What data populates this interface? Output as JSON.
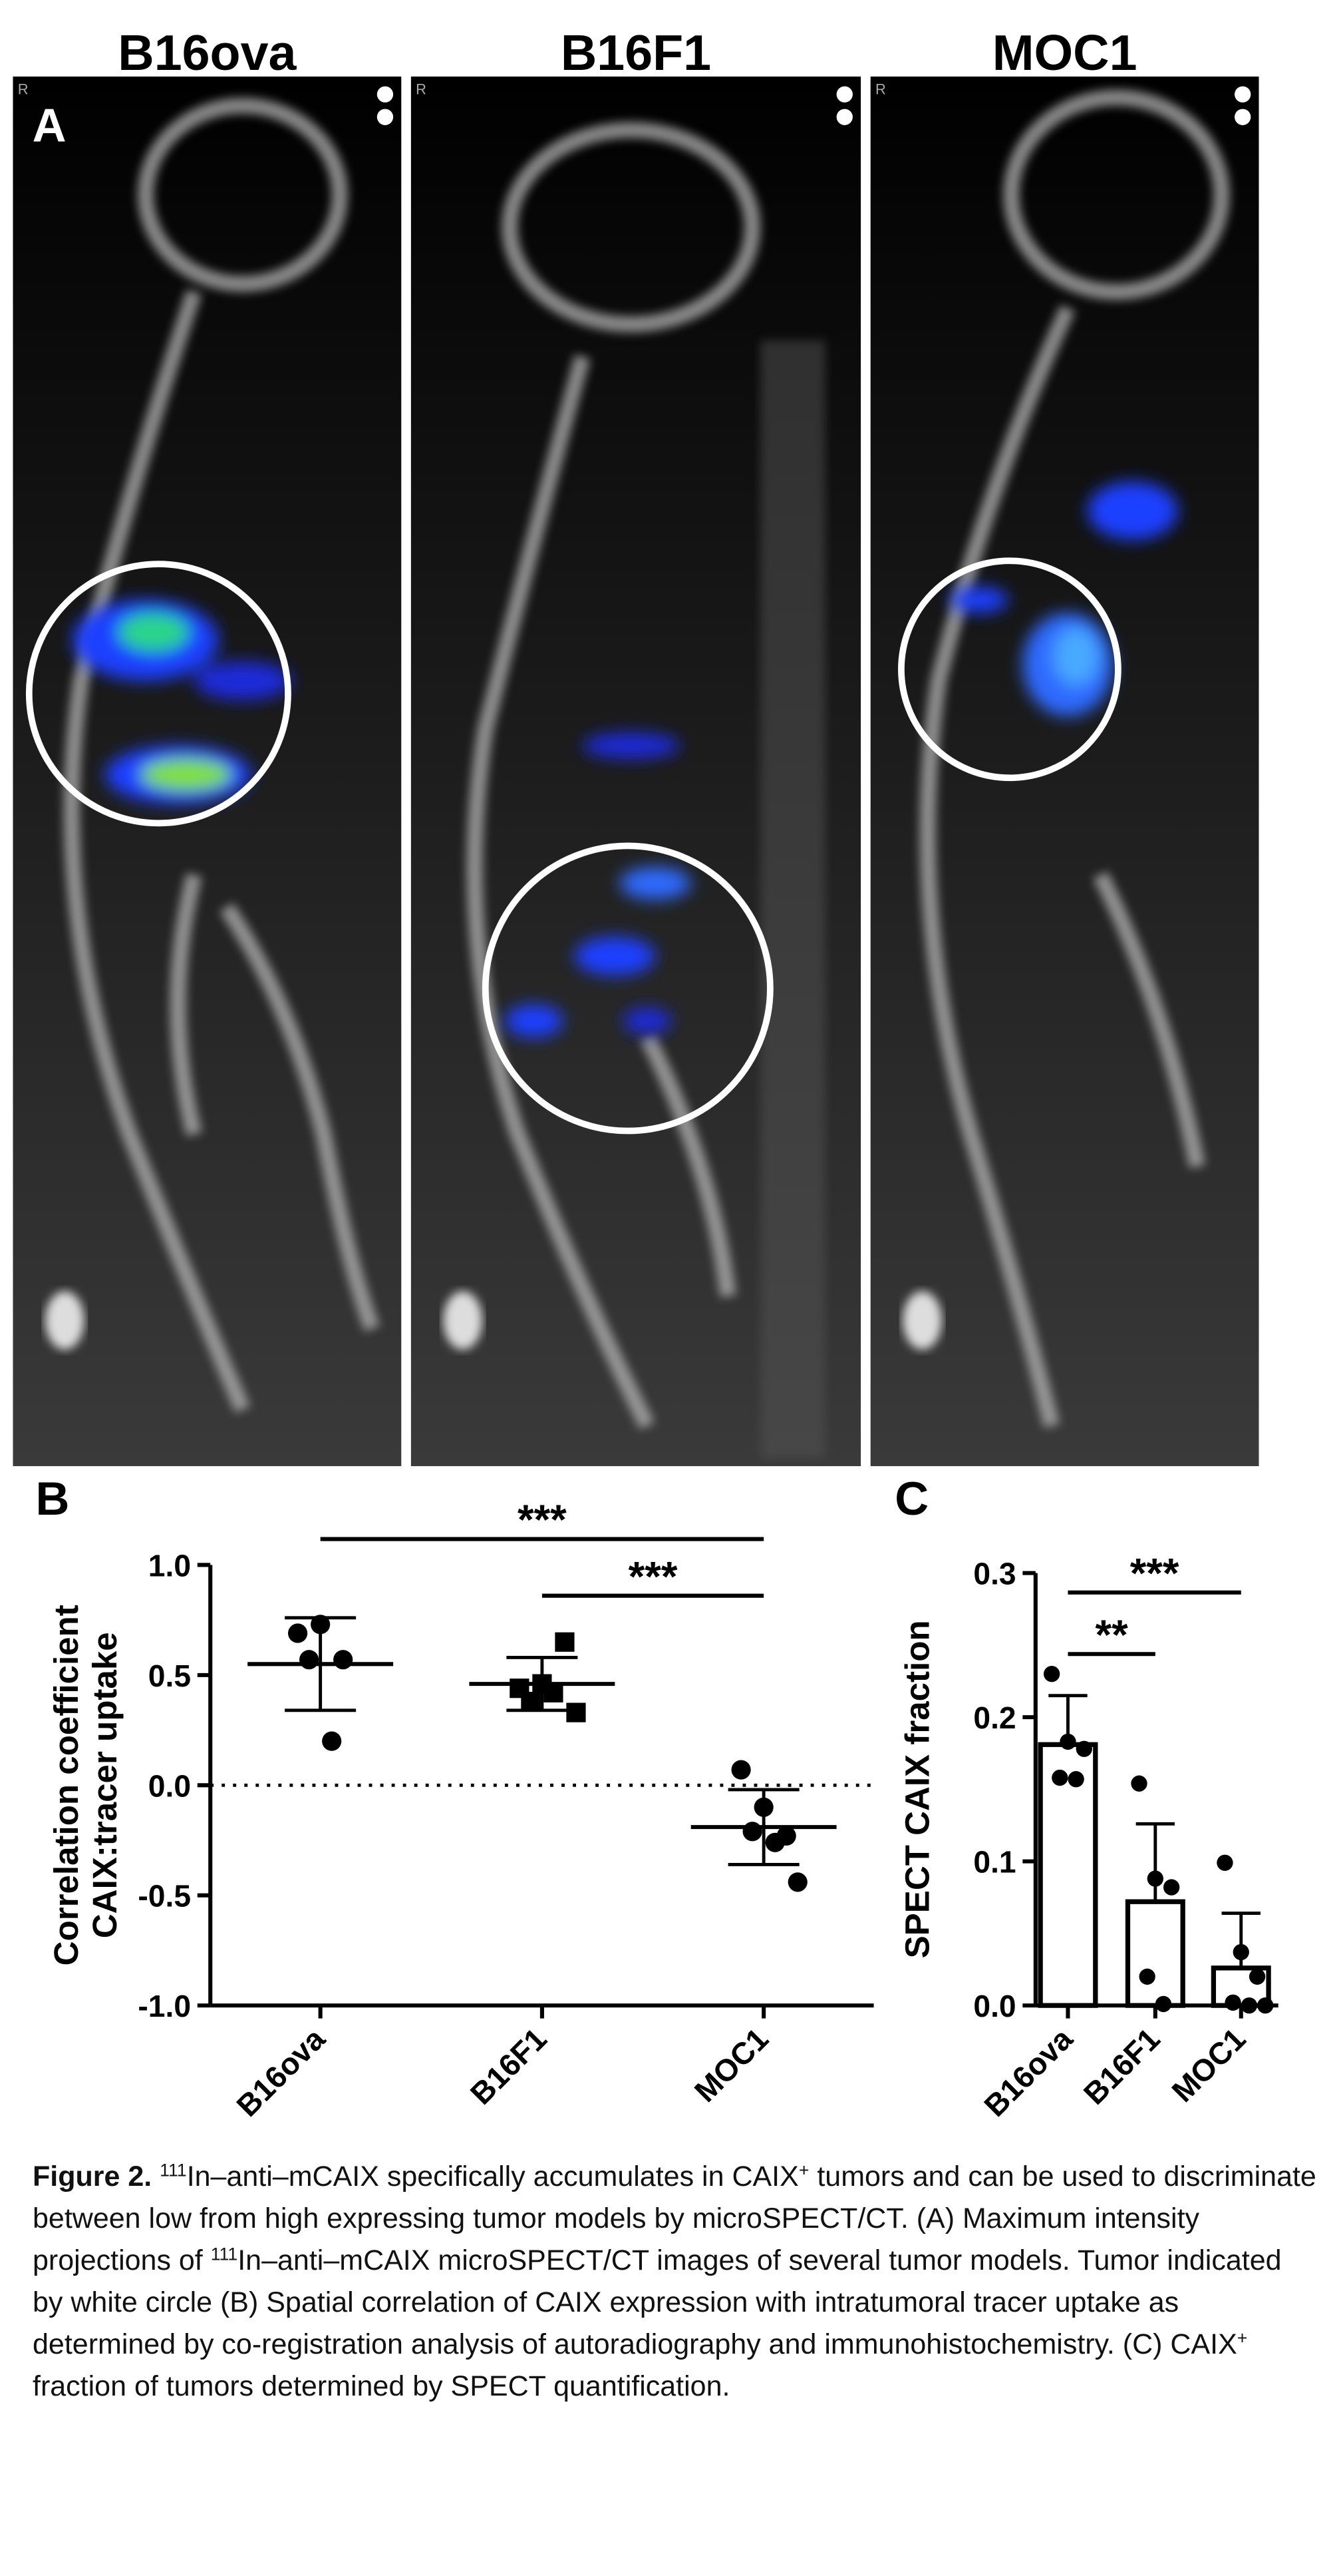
{
  "panel_a": {
    "label": "A",
    "panels": [
      {
        "title": "B16ova",
        "marker": "R"
      },
      {
        "title": "B16F1",
        "marker": "R"
      },
      {
        "title": "MOC1",
        "marker": "R"
      }
    ]
  },
  "chart_data": [
    {
      "type": "dot",
      "panel_label": "B",
      "y_label": [
        "Correlation coefficient",
        "CAIX:tracer uptake"
      ],
      "categories": [
        "B16ova",
        "B16F1",
        "MOC1"
      ],
      "points": [
        [
          0.69,
          0.73,
          0.57,
          0.57,
          0.2
        ],
        [
          0.44,
          0.46,
          0.65,
          0.38,
          0.42,
          0.33
        ],
        [
          0.07,
          -0.1,
          -0.23,
          -0.21,
          -0.26,
          -0.44
        ]
      ],
      "markers": [
        "circle",
        "square",
        "circle"
      ],
      "means": [
        0.55,
        0.46,
        -0.19
      ],
      "sd": [
        0.21,
        0.12,
        0.17
      ],
      "color": "#000000",
      "ylim": [
        -1,
        1
      ],
      "yticks": [
        {
          "value": 1,
          "label": "1.0"
        },
        {
          "value": 0.5,
          "label": "0.5"
        },
        {
          "value": 0,
          "label": "0.0"
        },
        {
          "value": -0.5,
          "label": "-0.5"
        },
        {
          "value": -1,
          "label": "-1.0"
        }
      ],
      "reference_line": 0,
      "comparisons": [
        {
          "groups": [
            "B16ova",
            "MOC1"
          ],
          "label": "***"
        },
        {
          "groups": [
            "B16F1",
            "MOC1"
          ],
          "label": "***"
        }
      ]
    },
    {
      "type": "bar",
      "panel_label": "C",
      "y_label": [
        "SPECT CAIX fraction"
      ],
      "categories": [
        "B16ova",
        "B16F1",
        "MOC1"
      ],
      "values": [
        0.181,
        0.072,
        0.026
      ],
      "errors": [
        0.034,
        0.054,
        0.038
      ],
      "points": [
        [
          0.23,
          0.183,
          0.178,
          0.158,
          0.157
        ],
        [
          0.154,
          0.088,
          0.082,
          0.02,
          0.001
        ],
        [
          0.099,
          0.037,
          0.02,
          0.002,
          0,
          0
        ]
      ],
      "color": "#000000",
      "ylim": [
        0,
        0.3
      ],
      "yticks": [
        {
          "value": 0,
          "label": "0.0"
        },
        {
          "value": 0.1,
          "label": "0.1"
        },
        {
          "value": 0.2,
          "label": "0.2"
        },
        {
          "value": 0.3,
          "label": "0.3"
        }
      ],
      "comparisons": [
        {
          "groups": [
            "B16ova",
            "B16F1"
          ],
          "label": "**"
        },
        {
          "groups": [
            "B16ova",
            "MOC1"
          ],
          "label": "***"
        }
      ]
    }
  ],
  "caption": {
    "label": "Figure 2.",
    "segments": [
      {
        "text": " "
      },
      {
        "text": "111",
        "sup": true
      },
      {
        "text": "In–anti–mCAIX specifically accumulates in CAIX"
      },
      {
        "text": "+",
        "sup": true
      },
      {
        "text": " tumors and can be used to discriminate between low from high expressing tumor models by microSPECT/CT. (A) Maximum intensity projections of "
      },
      {
        "text": "111",
        "sup": true
      },
      {
        "text": "In–anti–mCAIX microSPECT/CT images of several tumor models. Tumor indicated by white circle (B) Spatial correlation of CAIX expression with intratumoral tracer uptake as determined by co-registration analysis of autoradiography and immunohistochemistry. (C) CAIX"
      },
      {
        "text": "+",
        "sup": true
      },
      {
        "text": " fraction of tumors determined by SPECT quantification."
      }
    ]
  }
}
